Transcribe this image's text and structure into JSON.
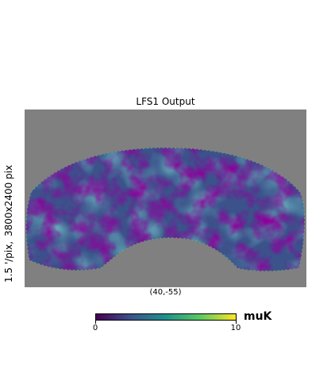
{
  "figure": {
    "title": "LFS1 Output",
    "ylabel_parts": [
      "1.5 '/pix,",
      "3800x2400 pix"
    ],
    "center_label": "(40,-55)",
    "background_color": "#808080",
    "colormap": "viridis",
    "colorbar": {
      "min_label": "0",
      "max_label": "10",
      "min": 0,
      "max": 10,
      "unit": "muK",
      "colors": [
        "#440154",
        "#3b528b",
        "#21918c",
        "#5ec962",
        "#fde725"
      ]
    }
  }
}
